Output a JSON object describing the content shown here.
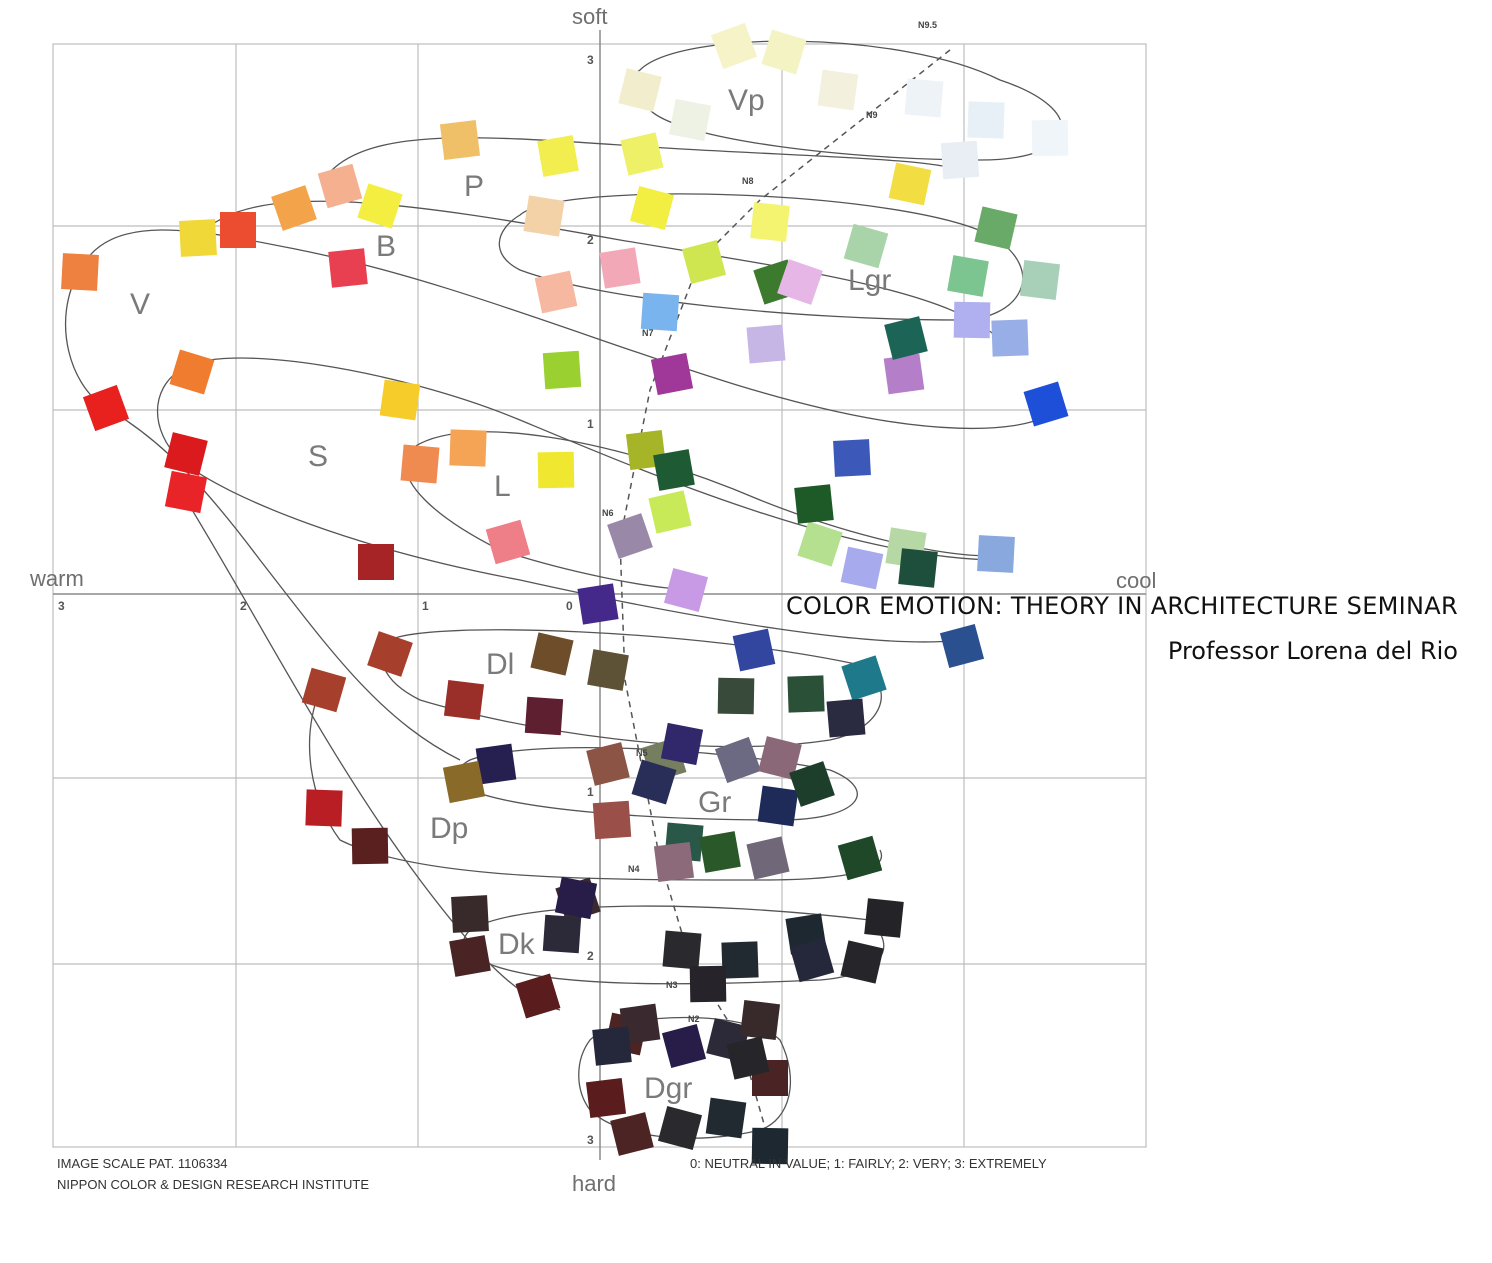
{
  "axes": {
    "top": "soft",
    "bottom": "hard",
    "left": "warm",
    "right": "cool",
    "horizontal_ticks": [
      "3",
      "2",
      "1",
      "0"
    ],
    "vertical_ticks_upper": [
      "3",
      "2",
      "1"
    ],
    "vertical_ticks_lower": [
      "1",
      "2",
      "3"
    ]
  },
  "groups": [
    "Vp",
    "P",
    "B",
    "Lgr",
    "V",
    "S",
    "L",
    "Dl",
    "Gr",
    "Dp",
    "Dk",
    "Dgr"
  ],
  "neutral_labels": [
    "N9.5",
    "N9",
    "N8",
    "N7",
    "N6",
    "N5",
    "N4",
    "N3",
    "N2"
  ],
  "footer": {
    "left_line1": "IMAGE SCALE PAT. 1106334",
    "left_line2": "NIPPON COLOR & DESIGN RESEARCH INSTITUTE",
    "right": "0: NEUTRAL IN VALUE; 1: FAIRLY; 2: VERY; 3: EXTREMELY"
  },
  "overlay": {
    "title": "COLOR EMOTION: THEORY IN ARCHITECTURE SEMINAR",
    "subtitle": "Professor Lorena del Rio"
  },
  "swatch_colors": [
    "#f6f3c8",
    "#f4f3c4",
    "#f2eecd",
    "#eef2e4",
    "#f3f0de",
    "#eef3f8",
    "#e6f0f6",
    "#eff5f8",
    "#e8eef3",
    "#f0c068",
    "#f2ee50",
    "#eef068",
    "#f5b090",
    "#f3a44a",
    "#f4ee40",
    "#f2ee42",
    "#f2de42",
    "#f4d2a8",
    "#f4f470",
    "#ee8040",
    "#ec4c30",
    "#f0d838",
    "#e84050",
    "#f3a8b8",
    "#f6b8a0",
    "#d0e650",
    "#3c7a2e",
    "#e6b6e6",
    "#a9d4a9",
    "#6aaa68",
    "#7cc490",
    "#a8d0b8",
    "#7ab4ee",
    "#b0b0f0",
    "#98aee6",
    "#c6b6e6",
    "#b47ec8",
    "#a0389a",
    "#1c6456",
    "#1d4fd8",
    "#e8201e",
    "#f07c30",
    "#da1a1c",
    "#e82428",
    "#f6cc2a",
    "#ef8a50",
    "#f4a454",
    "#f0e830",
    "#9ad030",
    "#a6b428",
    "#1e5a34",
    "#c8ea58",
    "#ee7e88",
    "#9a88a8",
    "#b4e090",
    "#c89ae6",
    "#a8aaee",
    "#b6d8a4",
    "#1e4f3c",
    "#88a8de",
    "#a62426",
    "#3c58b8",
    "#1e5a28",
    "#44288a",
    "#3246a0",
    "#2a5090",
    "#1e7a8a",
    "#a6402c",
    "#a6402c",
    "#6e4e2a",
    "#5e5236",
    "#9a2e28",
    "#5e2030",
    "#384a3a",
    "#2a5038",
    "#2a2a40",
    "#262050",
    "#8a6a28",
    "#8c5444",
    "#767e60",
    "#6c6a82",
    "#282e58",
    "#8a6878",
    "#30286a",
    "#1e2a58",
    "#2a5848",
    "#b81e24",
    "#5a2020",
    "#9a5048",
    "#8c6a7a",
    "#2a5828",
    "#706878",
    "#1e4828",
    "#1e3e2c",
    "#26263a"
  ],
  "dark_colors": [
    "#3a2a30",
    "#281c48",
    "#2c2a38",
    "#382a2a",
    "#4a2424",
    "#5a1c1c",
    "#4c2424",
    "#2a2a2e",
    "#202a30",
    "#1e2830",
    "#24283a",
    "#26262a",
    "#242428",
    "#26242a"
  ]
}
